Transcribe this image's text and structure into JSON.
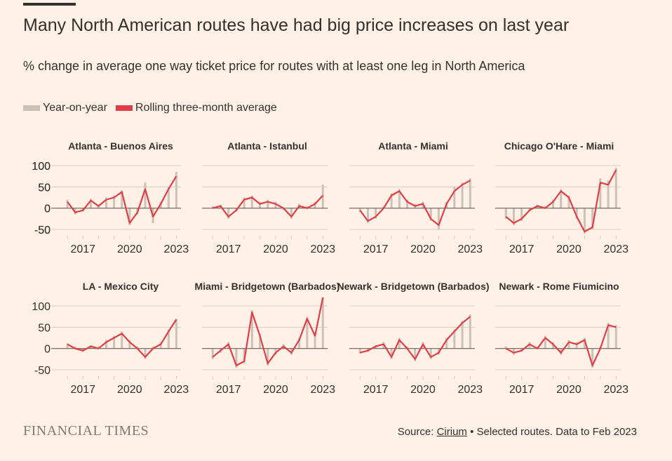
{
  "header": {
    "title": "Many North American routes have had big price increases on last year",
    "subtitle": "% change in average one way ticket price for routes with at least one leg in North America"
  },
  "legend": {
    "items": [
      {
        "label": "Year-on-year",
        "color": "#ccc1b7"
      },
      {
        "label": "Rolling three-month average",
        "color": "#e03d46"
      }
    ]
  },
  "footer": {
    "brand": "FINANCIAL TIMES",
    "source_prefix": "Source: ",
    "source_link": "Cirium",
    "source_suffix": " • Selected routes. Data to Feb 2023"
  },
  "colors": {
    "bar": "#ccc1b7",
    "line": "#e03d46",
    "grid": "#d9cdc2",
    "zero": "#66605c"
  },
  "chart_data": [
    {
      "type": "bar+line",
      "title": "Atlanta - Buenos Aires",
      "y_ticks": [
        100,
        50,
        0,
        -50
      ],
      "ylim": [
        -55,
        105
      ],
      "x_ticks": [
        "2017",
        "2020",
        "2023"
      ],
      "xlim": [
        2015.5,
        2023.3
      ],
      "x": [
        2016.0,
        2016.5,
        2017.0,
        2017.5,
        2018.0,
        2018.5,
        2019.0,
        2019.5,
        2020.0,
        2020.5,
        2021.0,
        2021.5,
        2022.0,
        2022.5,
        2023.0
      ],
      "line": [
        15,
        -10,
        -5,
        18,
        5,
        20,
        25,
        38,
        -35,
        -10,
        45,
        -20,
        10,
        45,
        75
      ],
      "bars": [
        20,
        -15,
        -8,
        22,
        8,
        25,
        30,
        42,
        -40,
        -15,
        60,
        -35,
        15,
        50,
        85
      ]
    },
    {
      "type": "bar+line",
      "title": "Atlanta - Istanbul",
      "y_ticks": [
        100,
        50,
        0,
        -50
      ],
      "ylim": [
        -55,
        105
      ],
      "x_ticks": [
        "2017",
        "2020",
        "2023"
      ],
      "xlim": [
        2015.5,
        2023.3
      ],
      "x": [
        2016.0,
        2016.5,
        2017.0,
        2017.5,
        2018.0,
        2018.5,
        2019.0,
        2019.5,
        2020.0,
        2020.5,
        2021.0,
        2021.5,
        2022.0,
        2022.5,
        2023.0
      ],
      "line": [
        0,
        5,
        -20,
        -5,
        20,
        25,
        10,
        15,
        10,
        0,
        -20,
        5,
        0,
        10,
        30
      ],
      "bars": [
        5,
        8,
        -25,
        -8,
        25,
        30,
        15,
        20,
        15,
        -5,
        -25,
        10,
        5,
        15,
        55
      ]
    },
    {
      "type": "bar+line",
      "title": "Atlanta - Miami",
      "y_ticks": [],
      "ylim": [
        -55,
        105
      ],
      "x_ticks": [
        "2017",
        "2020",
        "2023"
      ],
      "xlim": [
        2015.5,
        2023.3
      ],
      "x": [
        2016.0,
        2016.5,
        2017.0,
        2017.5,
        2018.0,
        2018.5,
        2019.0,
        2019.5,
        2020.0,
        2020.5,
        2021.0,
        2021.5,
        2022.0,
        2022.5,
        2023.0
      ],
      "line": [
        -5,
        -30,
        -20,
        0,
        30,
        40,
        15,
        5,
        10,
        -25,
        -40,
        10,
        40,
        55,
        65
      ],
      "bars": [
        -8,
        -35,
        -25,
        5,
        35,
        45,
        20,
        10,
        15,
        -30,
        -50,
        15,
        50,
        60,
        70
      ]
    },
    {
      "type": "bar+line",
      "title": "Chicago O'Hare - Miami",
      "y_ticks": [],
      "ylim": [
        -55,
        105
      ],
      "x_ticks": [
        "2017",
        "2020",
        "2023"
      ],
      "xlim": [
        2015.5,
        2023.3
      ],
      "x": [
        2016.0,
        2016.5,
        2017.0,
        2017.5,
        2018.0,
        2018.5,
        2019.0,
        2019.5,
        2020.0,
        2020.5,
        2021.0,
        2021.5,
        2022.0,
        2022.5,
        2023.0
      ],
      "line": [
        -20,
        -35,
        -25,
        -5,
        5,
        0,
        15,
        40,
        25,
        -20,
        -55,
        -45,
        60,
        55,
        90
      ],
      "bars": [
        -25,
        -40,
        -30,
        -8,
        8,
        5,
        20,
        45,
        30,
        -25,
        -60,
        -50,
        70,
        65,
        95
      ]
    },
    {
      "type": "bar+line",
      "title": "LA - Mexico City",
      "y_ticks": [
        100,
        50,
        0,
        -50
      ],
      "ylim": [
        -55,
        105
      ],
      "x_ticks": [
        "2017",
        "2020",
        "2023"
      ],
      "xlim": [
        2015.5,
        2023.3
      ],
      "x": [
        2016.0,
        2016.5,
        2017.0,
        2017.5,
        2018.0,
        2018.5,
        2019.0,
        2019.5,
        2020.0,
        2020.5,
        2021.0,
        2021.5,
        2022.0,
        2022.5,
        2023.0
      ],
      "line": [
        10,
        0,
        -5,
        5,
        0,
        15,
        25,
        35,
        15,
        0,
        -20,
        0,
        10,
        40,
        68
      ],
      "bars": [
        12,
        5,
        -8,
        8,
        5,
        20,
        30,
        40,
        20,
        5,
        -25,
        5,
        15,
        45,
        70
      ]
    },
    {
      "type": "bar+line",
      "title": "Miami - Bridgetown (Barbados)",
      "y_ticks": [],
      "ylim": [
        -55,
        105
      ],
      "x_ticks": [
        "2017",
        "2020",
        "2023"
      ],
      "xlim": [
        2015.5,
        2023.3
      ],
      "x": [
        2016.0,
        2016.5,
        2017.0,
        2017.5,
        2018.0,
        2018.5,
        2019.0,
        2019.5,
        2020.0,
        2020.5,
        2021.0,
        2021.5,
        2022.0,
        2022.5,
        2023.0
      ],
      "line": [
        -20,
        -5,
        10,
        -40,
        -30,
        85,
        30,
        -35,
        -10,
        5,
        -10,
        20,
        70,
        30,
        120
      ],
      "bars": [
        -25,
        -10,
        15,
        -45,
        -35,
        90,
        35,
        -40,
        -15,
        10,
        -15,
        25,
        75,
        35,
        120
      ]
    },
    {
      "type": "bar+line",
      "title": "Newark - Bridgetown (Barbados)",
      "y_ticks": [],
      "ylim": [
        -55,
        105
      ],
      "x_ticks": [
        "2017",
        "2020",
        "2023"
      ],
      "xlim": [
        2015.5,
        2023.3
      ],
      "x": [
        2016.0,
        2016.5,
        2017.0,
        2017.5,
        2018.0,
        2018.5,
        2019.0,
        2019.5,
        2020.0,
        2020.5,
        2021.0,
        2021.5,
        2022.0,
        2022.5,
        2023.0
      ],
      "line": [
        -10,
        -5,
        5,
        10,
        -20,
        20,
        0,
        -25,
        10,
        -20,
        -10,
        20,
        40,
        60,
        75
      ],
      "bars": [
        -12,
        -8,
        8,
        15,
        -25,
        25,
        5,
        -30,
        15,
        -25,
        -15,
        25,
        45,
        65,
        80
      ]
    },
    {
      "type": "bar+line",
      "title": "Newark - Rome Fiumicino",
      "y_ticks": [],
      "ylim": [
        -55,
        105
      ],
      "x_ticks": [
        "2017",
        "2020",
        "2023"
      ],
      "xlim": [
        2015.5,
        2023.3
      ],
      "x": [
        2016.0,
        2016.5,
        2017.0,
        2017.5,
        2018.0,
        2018.5,
        2019.0,
        2019.5,
        2020.0,
        2020.5,
        2021.0,
        2021.5,
        2022.0,
        2022.5,
        2023.0
      ],
      "line": [
        0,
        -10,
        -5,
        10,
        0,
        25,
        10,
        -10,
        15,
        10,
        20,
        -40,
        0,
        55,
        50
      ],
      "bars": [
        5,
        -15,
        -8,
        15,
        5,
        30,
        15,
        -15,
        20,
        15,
        25,
        -45,
        5,
        60,
        55
      ]
    }
  ]
}
